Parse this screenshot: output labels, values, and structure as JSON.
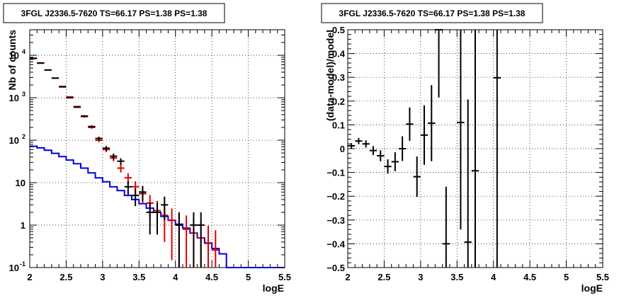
{
  "chart_data": [
    {
      "type": "line",
      "title": "3FGL J2336.5-7620 TS=66.17 PS=1.38 PS=1.38",
      "xlabel": "logE",
      "ylabel": "Nb of counts",
      "xlim": [
        2,
        5.5
      ],
      "ylim": [
        0.1,
        40000
      ],
      "yscale": "log",
      "grid": true,
      "x_ticks": [
        "2",
        "2.5",
        "3",
        "3.5",
        "4",
        "4.5",
        "5",
        "5.5"
      ],
      "y_ticks": [
        {
          "value": 0.1,
          "base": "10",
          "exp": "-1"
        },
        {
          "value": 1,
          "base": "1",
          "exp": ""
        },
        {
          "value": 10,
          "base": "10",
          "exp": ""
        },
        {
          "value": 100,
          "base": "10",
          "exp": "2"
        },
        {
          "value": 1000,
          "base": "10",
          "exp": "3"
        },
        {
          "value": 10000,
          "base": "10",
          "exp": "4"
        }
      ],
      "series": [
        {
          "role": "data",
          "color": "#000000",
          "bin_halfwidth": 0.05,
          "points": [
            {
              "x": 2.05,
              "y": 8500,
              "err": 92
            },
            {
              "x": 2.15,
              "y": 6600,
              "err": 81
            },
            {
              "x": 2.25,
              "y": 4500,
              "err": 67
            },
            {
              "x": 2.35,
              "y": 2900,
              "err": 54
            },
            {
              "x": 2.45,
              "y": 1800,
              "err": 42
            },
            {
              "x": 2.55,
              "y": 1000,
              "err": 32
            },
            {
              "x": 2.65,
              "y": 600,
              "err": 25
            },
            {
              "x": 2.75,
              "y": 370,
              "err": 19
            },
            {
              "x": 2.85,
              "y": 210,
              "err": 15
            },
            {
              "x": 2.95,
              "y": 110,
              "err": 11
            },
            {
              "x": 3.05,
              "y": 65,
              "err": 8
            },
            {
              "x": 3.15,
              "y": 42,
              "err": 6.5
            },
            {
              "x": 3.25,
              "y": 32,
              "err": 5.6
            },
            {
              "x": 3.35,
              "y": 8,
              "err": 2.8
            },
            {
              "x": 3.45,
              "y": 5,
              "err": 2.2
            },
            {
              "x": 3.55,
              "y": 6,
              "err": 2.4
            },
            {
              "x": 3.65,
              "y": 2,
              "err": 1.4
            },
            {
              "x": 3.75,
              "y": 2,
              "err": 1.4
            },
            {
              "x": 3.85,
              "y": 3,
              "err": 1.7
            },
            {
              "x": 4.05,
              "y": 1,
              "err": 1.0
            },
            {
              "x": 4.25,
              "y": 1,
              "err": 1.0
            },
            {
              "x": 4.35,
              "y": 1,
              "err": 1.0
            }
          ]
        },
        {
          "role": "model",
          "color": "#e00000",
          "bin_halfwidth": 0.05,
          "points": [
            {
              "x": 2.05,
              "y": 8400,
              "err": 92
            },
            {
              "x": 2.15,
              "y": 6500,
              "err": 81
            },
            {
              "x": 2.25,
              "y": 4500,
              "err": 67
            },
            {
              "x": 2.35,
              "y": 2900,
              "err": 54
            },
            {
              "x": 2.45,
              "y": 1850,
              "err": 43
            },
            {
              "x": 2.55,
              "y": 1050,
              "err": 32
            },
            {
              "x": 2.65,
              "y": 620,
              "err": 25
            },
            {
              "x": 2.75,
              "y": 360,
              "err": 19
            },
            {
              "x": 2.85,
              "y": 200,
              "err": 14
            },
            {
              "x": 2.95,
              "y": 100,
              "err": 10
            },
            {
              "x": 3.05,
              "y": 60,
              "err": 7.7
            },
            {
              "x": 3.15,
              "y": 38,
              "err": 6.2
            },
            {
              "x": 3.25,
              "y": 22,
              "err": 4.7
            },
            {
              "x": 3.35,
              "y": 13,
              "err": 3.6
            },
            {
              "x": 3.45,
              "y": 8,
              "err": 2.8
            },
            {
              "x": 3.55,
              "y": 5.5,
              "err": 2.3
            },
            {
              "x": 3.65,
              "y": 3.3,
              "err": 1.8
            },
            {
              "x": 3.75,
              "y": 2.2,
              "err": 1.5
            },
            {
              "x": 3.85,
              "y": 1.7,
              "err": 1.3
            },
            {
              "x": 3.95,
              "y": 1.3,
              "err": 1.15
            },
            {
              "x": 4.05,
              "y": 1.0,
              "err": 1.0
            },
            {
              "x": 4.15,
              "y": 0.8,
              "err": 0.89
            },
            {
              "x": 4.25,
              "y": 0.65,
              "err": 0.8
            },
            {
              "x": 4.35,
              "y": 0.5,
              "err": 0.7
            },
            {
              "x": 4.45,
              "y": 0.37,
              "err": 0.6
            },
            {
              "x": 4.55,
              "y": 0.26,
              "err": 0.5
            }
          ]
        },
        {
          "role": "background",
          "color": "#0000e0",
          "style": "step",
          "bin_edges": [
            2.0,
            2.1,
            2.2,
            2.3,
            2.4,
            2.5,
            2.6,
            2.7,
            2.8,
            2.9,
            3.0,
            3.1,
            3.2,
            3.3,
            3.4,
            3.5,
            3.6,
            3.7,
            3.8,
            3.9,
            4.0,
            4.1,
            4.2,
            4.3,
            4.4,
            4.5,
            4.6,
            4.7,
            4.8,
            4.9,
            5.0,
            5.1,
            5.2,
            5.3,
            5.4,
            5.5
          ],
          "values": [
            72,
            66,
            58,
            49,
            41,
            34,
            28,
            22,
            17,
            13,
            10.5,
            8,
            6.5,
            5,
            4,
            3.2,
            2.5,
            2.0,
            1.6,
            1.3,
            1.05,
            0.85,
            0.65,
            0.5,
            0.38,
            0.28,
            0.21,
            0.1,
            0.1,
            0.1,
            0.1,
            0.1,
            0.1,
            0.1,
            0.1
          ]
        }
      ]
    },
    {
      "type": "scatter",
      "title": "3FGL J2336.5-7620 TS=66.17 PS=1.38 PS=1.38",
      "xlabel": "logE",
      "ylabel": "(data-model)/model",
      "xlim": [
        2,
        5.5
      ],
      "ylim": [
        -0.5,
        0.5
      ],
      "grid": true,
      "x_ticks": [
        "2",
        "2.5",
        "3",
        "3.5",
        "4",
        "4.5",
        "5",
        "5.5"
      ],
      "y_ticks": [
        "−0.5",
        "−0.4",
        "−0.3",
        "−0.2",
        "−0.1",
        "0",
        "0.1",
        "0.2",
        "0.3",
        "0.4",
        "0.5"
      ],
      "series": [
        {
          "role": "residuals",
          "color": "#000000",
          "bin_halfwidth": 0.05,
          "points": [
            {
              "x": 2.05,
              "y": 0.012,
              "err": 0.011
            },
            {
              "x": 2.15,
              "y": 0.032,
              "err": 0.013
            },
            {
              "x": 2.25,
              "y": 0.02,
              "err": 0.015
            },
            {
              "x": 2.35,
              "y": -0.008,
              "err": 0.019
            },
            {
              "x": 2.45,
              "y": -0.03,
              "err": 0.023
            },
            {
              "x": 2.55,
              "y": -0.075,
              "err": 0.03
            },
            {
              "x": 2.65,
              "y": -0.055,
              "err": 0.04
            },
            {
              "x": 2.75,
              "y": 0.0,
              "err": 0.052
            },
            {
              "x": 2.85,
              "y": 0.103,
              "err": 0.07
            },
            {
              "x": 2.95,
              "y": -0.118,
              "err": 0.085
            },
            {
              "x": 3.05,
              "y": 0.057,
              "err": 0.125
            },
            {
              "x": 3.15,
              "y": 0.107,
              "err": 0.16
            },
            {
              "x": 3.25,
              "y": 0.5,
              "err": 0.285
            },
            {
              "x": 3.35,
              "y": -0.4,
              "err": 0.24
            },
            {
              "x": 3.55,
              "y": 0.11,
              "err": 0.45
            },
            {
              "x": 3.65,
              "y": -0.393,
              "err": 0.6
            },
            {
              "x": 3.75,
              "y": -0.093,
              "err": 0.8
            },
            {
              "x": 4.05,
              "y": 0.298,
              "err": 1.0
            }
          ]
        }
      ]
    }
  ]
}
